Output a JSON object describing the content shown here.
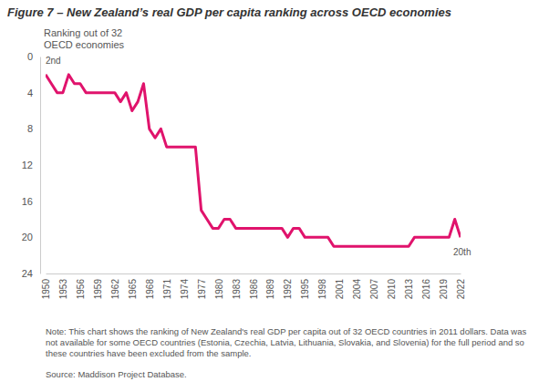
{
  "chart_data": {
    "type": "line",
    "title": "Figure 7 – New Zealand’s real GDP per capita ranking across OECD economies",
    "ylabel": "Ranking out of 32 OECD economies",
    "x": [
      1950,
      1951,
      1952,
      1953,
      1954,
      1955,
      1956,
      1957,
      1958,
      1959,
      1960,
      1961,
      1962,
      1963,
      1964,
      1965,
      1966,
      1967,
      1968,
      1969,
      1970,
      1971,
      1972,
      1973,
      1974,
      1975,
      1976,
      1977,
      1978,
      1979,
      1980,
      1981,
      1982,
      1983,
      1984,
      1985,
      1986,
      1987,
      1988,
      1989,
      1990,
      1991,
      1992,
      1993,
      1994,
      1995,
      1996,
      1997,
      1998,
      1999,
      2000,
      2001,
      2002,
      2003,
      2004,
      2005,
      2006,
      2007,
      2008,
      2009,
      2010,
      2011,
      2012,
      2013,
      2014,
      2015,
      2016,
      2017,
      2018,
      2019,
      2020,
      2021,
      2022
    ],
    "values": [
      2,
      3,
      4,
      4,
      2,
      3,
      3,
      4,
      4,
      4,
      4,
      4,
      4,
      5,
      4,
      6,
      5,
      3,
      8,
      9,
      8,
      10,
      10,
      10,
      10,
      10,
      10,
      17,
      18,
      19,
      19,
      18,
      18,
      19,
      19,
      19,
      19,
      19,
      19,
      19,
      19,
      19,
      20,
      19,
      19,
      20,
      20,
      20,
      20,
      20,
      21,
      21,
      21,
      21,
      21,
      21,
      21,
      21,
      21,
      21,
      21,
      21,
      21,
      21,
      20,
      20,
      20,
      20,
      20,
      20,
      20,
      18,
      20
    ],
    "color": "#e0136c",
    "xlim": [
      1950,
      2022
    ],
    "xticks": [
      1950,
      1953,
      1956,
      1959,
      1962,
      1965,
      1968,
      1971,
      1974,
      1977,
      1980,
      1983,
      1986,
      1989,
      1992,
      1995,
      1998,
      2001,
      2004,
      2007,
      2010,
      2013,
      2016,
      2019,
      2022
    ],
    "ylim": [
      24,
      0
    ],
    "yticks": [
      0,
      4,
      8,
      12,
      16,
      20,
      24
    ],
    "grid": false,
    "annotations": [
      {
        "text": "2nd",
        "x": 1950,
        "y": 2
      },
      {
        "text": "20th",
        "x": 2022,
        "y": 20
      }
    ],
    "note": "Note: This chart shows the ranking of New Zealand's real GDP per capita out of 32 OECD countries in 2011 dollars. Data was not available for some OECD countries (Estonia, Czechia, Latvia, Lithuania, Slovakia, and Slovenia) for the full period and so these countries have been excluded from the sample.",
    "source": "Source: Maddison Project Database."
  }
}
